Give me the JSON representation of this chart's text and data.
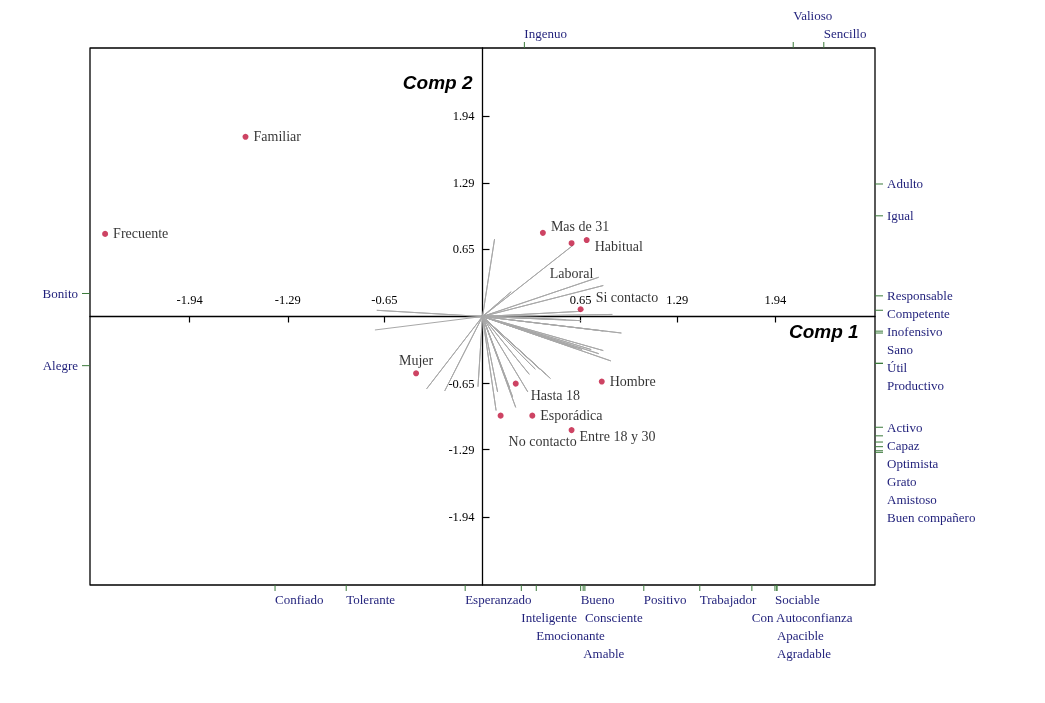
{
  "chart_data": {
    "type": "scatter",
    "xlabel": "Comp 1",
    "ylabel": "Comp 2",
    "xlim": [
      -2.6,
      2.6
    ],
    "ylim": [
      -2.6,
      2.6
    ],
    "xticks": [
      -1.94,
      -1.29,
      -0.65,
      0.65,
      1.29,
      1.94
    ],
    "yticks": [
      -1.94,
      -1.29,
      -0.65,
      0.65,
      1.29,
      1.94
    ],
    "line_style": "solid",
    "series": [
      {
        "color": "#c0143c",
        "marker": "circle",
        "x": [
          -1.57,
          -2.5,
          0.4,
          0.69,
          0.59,
          0.65,
          -0.44,
          0.22,
          0.79,
          0.33,
          0.12,
          0.59
        ],
        "values": [
          1.74,
          0.8,
          0.81,
          0.74,
          0.71,
          0.07,
          -0.55,
          -0.65,
          -0.63,
          -0.96,
          -0.96,
          -1.1
        ],
        "value_labels": [
          "Familiar",
          "Frecuente",
          "Mas de 31",
          "Habitual",
          "Laboral",
          "Si contacto",
          "Mujer",
          "Hasta 18",
          "Hombre",
          "Esporádica",
          "No contacto",
          "Entre 18 y 30"
        ]
      },
      {
        "type": "line",
        "color": "#a8a8a8",
        "x": [
          0,
          0.08,
          0,
          0.19,
          0,
          0.6,
          0,
          0.77,
          0,
          0.8,
          0,
          0.65,
          0,
          0.86,
          0,
          0.55,
          0,
          0.65,
          0,
          0.92,
          0,
          0.8,
          0,
          0.8,
          0,
          0.72,
          0,
          0.77,
          0,
          0.66,
          0,
          0.62,
          0,
          0.85,
          0,
          -0.37,
          0,
          -0.25,
          0,
          -0.03,
          0,
          0.09,
          0,
          0.1,
          0,
          0.22,
          0,
          0.2,
          0,
          0.18,
          0,
          0.3,
          0,
          0.31,
          0,
          0.38,
          0,
          0.42,
          0,
          0.45,
          0,
          0.35,
          0,
          -0.7,
          0,
          -0.71
        ],
        "values": [
          0,
          0.75,
          0,
          0.24,
          0,
          0.69,
          0,
          0.38,
          0,
          0.3,
          0,
          0.05,
          0,
          0.02,
          0,
          -0.03,
          0,
          -0.04,
          0,
          -0.16,
          0,
          -0.14,
          0,
          -0.33,
          0,
          -0.32,
          0,
          -0.36,
          0,
          -0.32,
          0,
          -0.31,
          0,
          -0.43,
          0,
          -0.7,
          0,
          -0.72,
          0,
          -0.68,
          0,
          -0.91,
          0,
          -0.73,
          0,
          -0.88,
          0,
          -0.78,
          0,
          -0.69,
          0,
          -0.73,
          0,
          -0.56,
          0,
          -0.51,
          0,
          -0.56,
          0,
          -0.6,
          0,
          -0.51,
          0,
          0.06,
          0,
          -0.13
        ]
      }
    ],
    "annotations": [
      "Ingenuo",
      "Valioso",
      "Sencillo",
      "Adulto",
      "Igual",
      "Responsable",
      "Competente",
      "Inofensivo",
      "Sano",
      "Útil",
      "Productivo",
      "Activo",
      "Capaz",
      "Optimista",
      "Grato",
      "Amistoso",
      "Buen compañero",
      "Confiado",
      "Tolerante",
      "Esperanzado",
      "Inteligente",
      "Emocionante",
      "Bueno",
      "Amable",
      "Consciente",
      "Positivo",
      "Trabajador",
      "Sociable",
      "Apacible",
      "Agradable",
      "Con Autoconfianza",
      "Bonito",
      "Alegre"
    ]
  }
}
